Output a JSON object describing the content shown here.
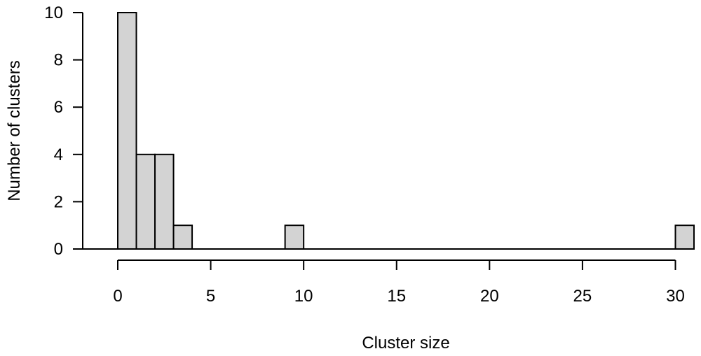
{
  "chart_data": {
    "type": "bar",
    "title": "",
    "xlabel": "Cluster size",
    "ylabel": "Number of clusters",
    "bin_width": 1,
    "bins": [
      {
        "start": 0,
        "end": 1,
        "count": 10
      },
      {
        "start": 1,
        "end": 2,
        "count": 4
      },
      {
        "start": 2,
        "end": 3,
        "count": 4
      },
      {
        "start": 3,
        "end": 4,
        "count": 1
      },
      {
        "start": 9,
        "end": 10,
        "count": 1
      },
      {
        "start": 30,
        "end": 31,
        "count": 1
      }
    ],
    "xlim": [
      0,
      31
    ],
    "ylim": [
      0,
      10
    ],
    "x_ticks": [
      "0",
      "5",
      "10",
      "15",
      "20",
      "25",
      "30"
    ],
    "y_ticks": [
      "0",
      "2",
      "4",
      "6",
      "8",
      "10"
    ],
    "grid": false,
    "bar_fill": "#d3d3d3",
    "bar_stroke": "#000000"
  }
}
